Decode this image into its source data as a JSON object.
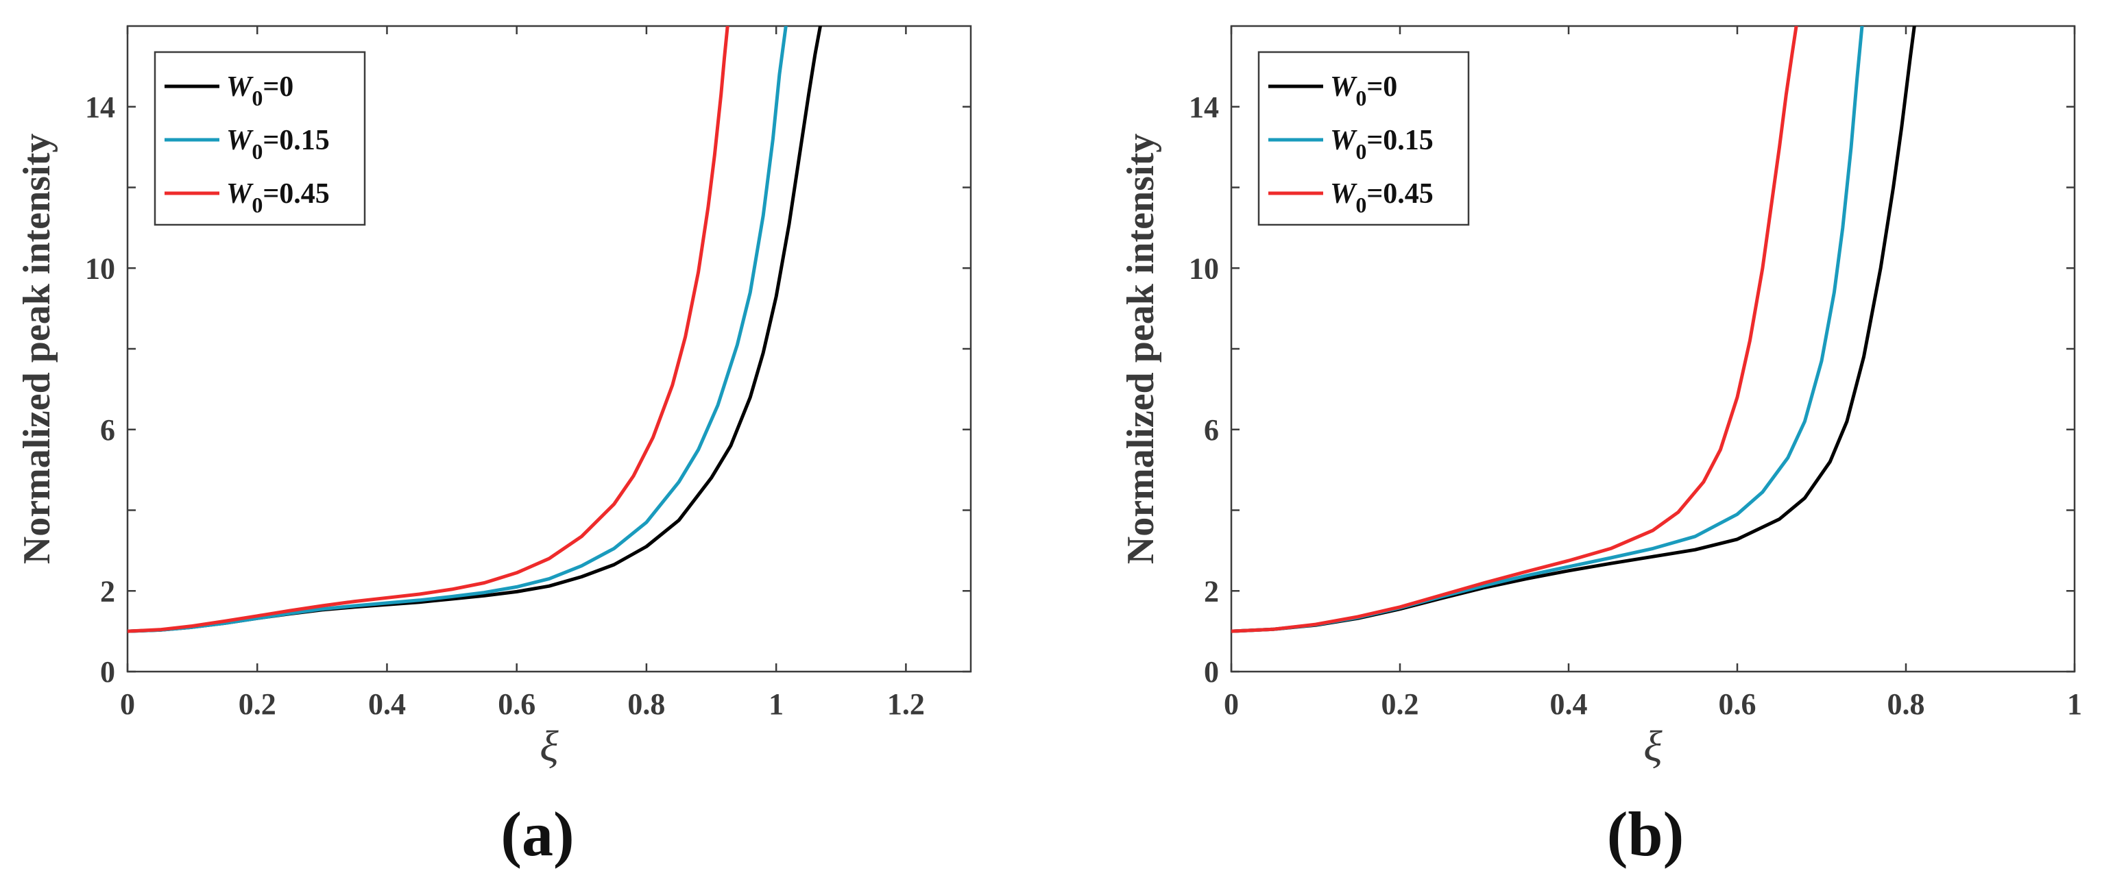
{
  "chart_data": [
    {
      "type": "line",
      "panel_label": "(a)",
      "title": "",
      "xlabel": "ξ",
      "ylabel": "Normalized peak intensity",
      "xlim": [
        0,
        1.3
      ],
      "ylim": [
        0,
        16
      ],
      "xticks": [
        0,
        0.2,
        0.4,
        0.6,
        0.8,
        1,
        1.2
      ],
      "xtick_labels": [
        "0",
        "0.2",
        "0.4",
        "0.6",
        "0.8",
        "1",
        "1.2"
      ],
      "yticks": [
        0,
        2,
        6,
        10,
        14
      ],
      "ytick_labels": [
        "0",
        "2",
        "6",
        "10",
        "14"
      ],
      "minor_yticks": [
        4,
        8,
        12
      ],
      "grid": false,
      "legend_position": "top-left",
      "series": [
        {
          "name": "W0=0",
          "legend_main": "W",
          "legend_sub": "0",
          "legend_value": "=0",
          "color": "#000000",
          "x": [
            0,
            0.05,
            0.1,
            0.15,
            0.2,
            0.25,
            0.3,
            0.35,
            0.4,
            0.45,
            0.5,
            0.55,
            0.6,
            0.65,
            0.7,
            0.75,
            0.8,
            0.85,
            0.9,
            0.93,
            0.96,
            0.98,
            1.0,
            1.02,
            1.035,
            1.05,
            1.06,
            1.068
          ],
          "y": [
            1.0,
            1.03,
            1.1,
            1.2,
            1.32,
            1.43,
            1.53,
            1.6,
            1.66,
            1.72,
            1.8,
            1.88,
            1.98,
            2.12,
            2.35,
            2.65,
            3.1,
            3.75,
            4.8,
            5.6,
            6.8,
            7.9,
            9.3,
            11.1,
            12.7,
            14.3,
            15.3,
            16.0
          ]
        },
        {
          "name": "W0=0.15",
          "legend_main": "W",
          "legend_sub": "0",
          "legend_value": "=0.15",
          "color": "#1a9bbd",
          "x": [
            0,
            0.05,
            0.1,
            0.15,
            0.2,
            0.25,
            0.3,
            0.35,
            0.4,
            0.45,
            0.5,
            0.55,
            0.6,
            0.65,
            0.7,
            0.75,
            0.8,
            0.85,
            0.88,
            0.91,
            0.94,
            0.96,
            0.98,
            0.995,
            1.005,
            1.015
          ],
          "y": [
            1.0,
            1.03,
            1.1,
            1.2,
            1.32,
            1.44,
            1.55,
            1.63,
            1.7,
            1.77,
            1.86,
            1.96,
            2.1,
            2.3,
            2.62,
            3.05,
            3.7,
            4.7,
            5.5,
            6.6,
            8.1,
            9.4,
            11.3,
            13.2,
            14.8,
            16.0
          ]
        },
        {
          "name": "W0=0.45",
          "legend_main": "W",
          "legend_sub": "0",
          "legend_value": "=0.45",
          "color": "#ee2b2b",
          "x": [
            0,
            0.05,
            0.1,
            0.15,
            0.2,
            0.25,
            0.3,
            0.35,
            0.4,
            0.45,
            0.5,
            0.55,
            0.6,
            0.65,
            0.7,
            0.75,
            0.78,
            0.81,
            0.84,
            0.86,
            0.88,
            0.895,
            0.905,
            0.915,
            0.92,
            0.925
          ],
          "y": [
            1.0,
            1.04,
            1.13,
            1.25,
            1.38,
            1.51,
            1.63,
            1.74,
            1.83,
            1.92,
            2.04,
            2.2,
            2.45,
            2.8,
            3.35,
            4.15,
            4.85,
            5.8,
            7.1,
            8.3,
            9.9,
            11.5,
            12.8,
            14.3,
            15.2,
            16.0
          ]
        }
      ]
    },
    {
      "type": "line",
      "panel_label": "(b)",
      "title": "",
      "xlabel": "ξ",
      "ylabel": "Normalized peak intensity",
      "xlim": [
        0,
        1
      ],
      "ylim": [
        0,
        16
      ],
      "xticks": [
        0,
        0.2,
        0.4,
        0.6,
        0.8,
        1
      ],
      "xtick_labels": [
        "0",
        "0.2",
        "0.4",
        "0.6",
        "0.8",
        "1"
      ],
      "yticks": [
        0,
        2,
        6,
        10,
        14
      ],
      "ytick_labels": [
        "0",
        "2",
        "6",
        "10",
        "14"
      ],
      "minor_yticks": [
        4,
        8,
        12
      ],
      "grid": false,
      "legend_position": "top-left",
      "series": [
        {
          "name": "W0=0",
          "legend_main": "W",
          "legend_sub": "0",
          "legend_value": "=0",
          "color": "#000000",
          "x": [
            0,
            0.05,
            0.1,
            0.15,
            0.2,
            0.25,
            0.3,
            0.35,
            0.4,
            0.45,
            0.5,
            0.55,
            0.6,
            0.65,
            0.68,
            0.71,
            0.73,
            0.75,
            0.77,
            0.785,
            0.795,
            0.805,
            0.81
          ],
          "y": [
            1.0,
            1.05,
            1.15,
            1.32,
            1.55,
            1.82,
            2.08,
            2.3,
            2.5,
            2.68,
            2.85,
            3.02,
            3.28,
            3.78,
            4.3,
            5.2,
            6.2,
            7.8,
            10.0,
            12.0,
            13.5,
            15.2,
            16.0
          ]
        },
        {
          "name": "W0=0.15",
          "legend_main": "W",
          "legend_sub": "0",
          "legend_value": "=0.15",
          "color": "#1a9bbd",
          "x": [
            0,
            0.05,
            0.1,
            0.15,
            0.2,
            0.25,
            0.3,
            0.35,
            0.4,
            0.45,
            0.5,
            0.55,
            0.6,
            0.63,
            0.66,
            0.68,
            0.7,
            0.715,
            0.725,
            0.735,
            0.742,
            0.748
          ],
          "y": [
            1.0,
            1.05,
            1.16,
            1.34,
            1.58,
            1.86,
            2.13,
            2.38,
            2.6,
            2.82,
            3.05,
            3.35,
            3.9,
            4.45,
            5.3,
            6.2,
            7.7,
            9.4,
            11.0,
            13.0,
            14.7,
            16.0
          ]
        },
        {
          "name": "W0=0.45",
          "legend_main": "W",
          "legend_sub": "0",
          "legend_value": "=0.45",
          "color": "#ee2b2b",
          "x": [
            0,
            0.05,
            0.1,
            0.15,
            0.2,
            0.25,
            0.3,
            0.35,
            0.4,
            0.45,
            0.5,
            0.53,
            0.56,
            0.58,
            0.6,
            0.615,
            0.63,
            0.64,
            0.65,
            0.658,
            0.665,
            0.67
          ],
          "y": [
            1.0,
            1.05,
            1.17,
            1.36,
            1.6,
            1.9,
            2.2,
            2.48,
            2.75,
            3.05,
            3.5,
            3.95,
            4.7,
            5.5,
            6.8,
            8.2,
            10.0,
            11.5,
            13.0,
            14.3,
            15.3,
            16.0
          ]
        }
      ]
    }
  ]
}
